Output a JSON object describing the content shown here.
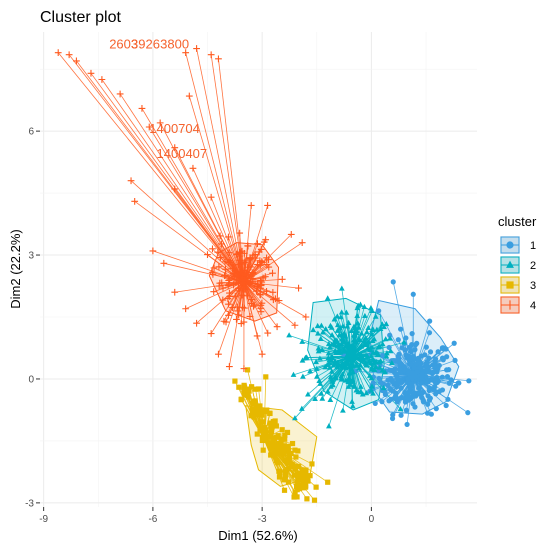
{
  "chart_data": {
    "type": "scatter",
    "title": "Cluster plot",
    "xlabel": "Dim1 (52.6%)",
    "ylabel": "Dim2 (22.2%)",
    "xlim": [
      -9.1,
      2.9
    ],
    "ylim": [
      -3.1,
      8.4
    ],
    "x_ticks": [
      -9,
      -6,
      -3,
      0
    ],
    "y_ticks": [
      -3,
      0,
      3,
      6
    ],
    "x_tick_labels": [
      "-9",
      "-6",
      "-3",
      "0"
    ],
    "y_tick_labels": [
      "-3",
      "0",
      "3",
      "6"
    ],
    "grid": true,
    "legend": {
      "title": "cluster",
      "position": "right"
    },
    "series": [
      {
        "name": "1",
        "marker": "circle",
        "color": "#3a9ee0",
        "center": [
          1.15,
          0.08
        ],
        "spread": [
          0.55,
          0.45
        ],
        "hull": [
          [
            0.2,
            1.9
          ],
          [
            1.2,
            1.7
          ],
          [
            1.9,
            1.0
          ],
          [
            2.4,
            0.3
          ],
          [
            2.05,
            -0.55
          ],
          [
            1.4,
            -0.85
          ],
          [
            0.5,
            -0.8
          ],
          [
            0.1,
            -0.3
          ],
          [
            -0.05,
            1.0
          ]
        ],
        "extremes": [
          [
            2.4,
            -0.1
          ],
          [
            0.6,
            2.35
          ],
          [
            1.15,
            2.05
          ],
          [
            0.2,
            1.65
          ],
          [
            1.6,
            1.4
          ],
          [
            1.95,
            0.75
          ]
        ]
      },
      {
        "name": "2",
        "marker": "triangle",
        "color": "#00b0c0",
        "center": [
          -0.55,
          0.55
        ],
        "spread": [
          0.6,
          0.5
        ],
        "hull": [
          [
            -1.6,
            1.85
          ],
          [
            -0.7,
            1.95
          ],
          [
            0.25,
            1.55
          ],
          [
            0.35,
            0.35
          ],
          [
            0.2,
            -0.5
          ],
          [
            -0.5,
            -0.75
          ],
          [
            -1.3,
            -0.3
          ],
          [
            -1.75,
            0.7
          ]
        ],
        "extremes": [
          [
            -1.2,
            1.95
          ],
          [
            -0.3,
            1.8
          ],
          [
            0.3,
            0.2
          ],
          [
            -1.9,
            0.9
          ],
          [
            -2.1,
            -0.95
          ]
        ]
      },
      {
        "name": "3",
        "marker": "square",
        "color": "#e6b800",
        "center": [
          -2.95,
          -1.45
        ],
        "spread": [
          0.55,
          0.5
        ],
        "hull": [
          [
            -3.45,
            -0.65
          ],
          [
            -2.45,
            -0.75
          ],
          [
            -1.5,
            -1.4
          ],
          [
            -1.7,
            -2.4
          ],
          [
            -2.5,
            -2.6
          ],
          [
            -3.1,
            -2.2
          ],
          [
            -3.3,
            -1.6
          ]
        ],
        "extremes": [
          [
            -3.4,
            0.22
          ],
          [
            -2.9,
            0.05
          ],
          [
            -1.2,
            -2.5
          ],
          [
            -3.5,
            -0.25
          ],
          [
            -1.9,
            -2.2
          ]
        ]
      },
      {
        "name": "4",
        "marker": "cross",
        "color": "#ff5a1f",
        "center": [
          -3.5,
          2.35
        ],
        "spread": [
          0.45,
          0.5
        ],
        "hull": [
          [
            -3.7,
            3.3
          ],
          [
            -3.0,
            3.25
          ],
          [
            -2.55,
            2.7
          ],
          [
            -2.6,
            1.6
          ],
          [
            -3.2,
            1.4
          ],
          [
            -4.0,
            1.65
          ],
          [
            -4.45,
            2.5
          ],
          [
            -4.2,
            3.05
          ]
        ],
        "extremes": [
          [
            -8.6,
            7.9
          ],
          [
            -8.3,
            7.85
          ],
          [
            -8.1,
            7.7
          ],
          [
            -7.7,
            7.4
          ],
          [
            -7.4,
            7.25
          ],
          [
            -6.9,
            6.9
          ],
          [
            -6.3,
            6.55
          ],
          [
            -5.8,
            6.2
          ],
          [
            -5.4,
            5.6
          ],
          [
            -6.1,
            6.1
          ],
          [
            -6.6,
            4.8
          ],
          [
            -6.5,
            4.3
          ],
          [
            -5.0,
            6.85
          ],
          [
            -5.1,
            7.9
          ],
          [
            -4.8,
            8.0
          ],
          [
            -4.4,
            7.85
          ],
          [
            -4.2,
            7.75
          ],
          [
            -4.9,
            5.1
          ],
          [
            -5.4,
            4.6
          ],
          [
            -4.4,
            4.4
          ],
          [
            -3.3,
            4.2
          ],
          [
            -2.85,
            4.2
          ],
          [
            -2.2,
            3.5
          ],
          [
            -1.9,
            3.3
          ],
          [
            -6.0,
            3.1
          ],
          [
            -5.7,
            2.8
          ],
          [
            -5.4,
            2.1
          ],
          [
            -5.1,
            1.7
          ],
          [
            -4.8,
            1.35
          ],
          [
            -4.4,
            1.1
          ],
          [
            -4.2,
            0.6
          ],
          [
            -3.9,
            0.3
          ],
          [
            -3.5,
            0.25
          ],
          [
            -3.0,
            0.6
          ],
          [
            -2.1,
            1.3
          ],
          [
            -2.0,
            2.2
          ],
          [
            -1.8,
            1.5
          ]
        ]
      }
    ],
    "annotations": [
      {
        "text": "2603",
        "x": -7.2,
        "y": 8.0,
        "color": "#f5622d"
      },
      {
        "text": "3926",
        "x": -6.6,
        "y": 8.0,
        "color": "#f5622d"
      },
      {
        "text": "3800",
        "x": -5.8,
        "y": 8.0,
        "color": "#f5622d"
      },
      {
        "text": "1400704",
        "x": -6.1,
        "y": 5.95,
        "color": "#f5622d"
      },
      {
        "text": "1400407",
        "x": -5.9,
        "y": 5.35,
        "color": "#f5622d"
      }
    ]
  }
}
